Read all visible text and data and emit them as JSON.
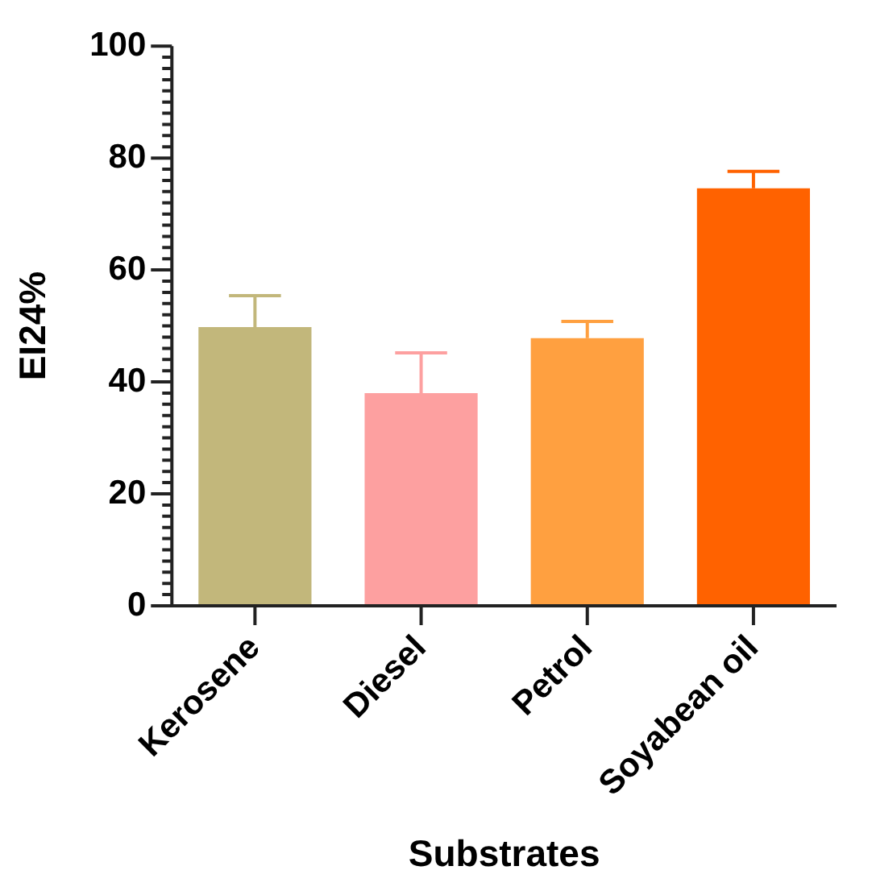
{
  "chart_data": {
    "type": "bar",
    "xlabel": "Substrates",
    "ylabel": "EI24%",
    "categories": [
      "Kerosene",
      "Diesel",
      "Petrol",
      "Soyabean oil"
    ],
    "values": [
      49.8,
      38.0,
      47.8,
      74.6
    ],
    "colors": [
      "#c2b77b",
      "#fda0a0",
      "#ffa040",
      "#ff6200"
    ],
    "errors": [
      [
        49.8,
        55.4
      ],
      [
        38.0,
        45.2
      ],
      [
        47.8,
        50.8
      ],
      [
        74.6,
        77.6
      ]
    ],
    "ylim": [
      0,
      100
    ],
    "yticks": [
      0,
      {
        "value": 2,
        "label": null
      },
      {
        "value": 4,
        "label": null
      },
      {
        "value": 6,
        "label": null
      },
      {
        "value": 8,
        "label": null
      },
      {
        "value": 10,
        "label": null
      },
      {
        "value": 12,
        "label": null
      },
      {
        "value": 14,
        "label": null
      },
      {
        "value": 16,
        "label": null
      },
      {
        "value": 18,
        "label": null
      },
      20,
      {
        "value": 22,
        "label": null
      },
      {
        "value": 24,
        "label": null
      },
      {
        "value": 26,
        "label": null
      },
      {
        "value": 28,
        "label": null
      },
      {
        "value": 30,
        "label": null
      },
      {
        "value": 32,
        "label": null
      },
      {
        "value": 34,
        "label": null
      },
      {
        "value": 36,
        "label": null
      },
      {
        "value": 38,
        "label": null
      },
      40,
      {
        "value": 42,
        "label": null
      },
      {
        "value": 44,
        "label": null
      },
      {
        "value": 46,
        "label": null
      },
      {
        "value": 48,
        "label": null
      },
      {
        "value": 50,
        "label": null
      },
      {
        "value": 52,
        "label": null
      },
      {
        "value": 54,
        "label": null
      },
      {
        "value": 56,
        "label": null
      },
      {
        "value": 58,
        "label": null
      },
      60,
      {
        "value": 62,
        "label": null
      },
      {
        "value": 64,
        "label": null
      },
      {
        "value": 66,
        "label": null
      },
      {
        "value": 68,
        "label": null
      },
      {
        "value": 70,
        "label": null
      },
      {
        "value": 72,
        "label": null
      },
      {
        "value": 74,
        "label": null
      },
      {
        "value": 76,
        "label": null
      },
      {
        "value": 78,
        "label": null
      },
      80,
      {
        "value": 82,
        "label": null
      },
      {
        "value": 84,
        "label": null
      },
      {
        "value": 86,
        "label": null
      },
      {
        "value": 88,
        "label": null
      },
      {
        "value": 90,
        "label": null
      },
      {
        "value": 92,
        "label": null
      },
      {
        "value": 94,
        "label": null
      },
      {
        "value": 96,
        "label": null
      },
      {
        "value": 98,
        "label": null
      },
      100
    ],
    "grid": false,
    "legend": false
  }
}
